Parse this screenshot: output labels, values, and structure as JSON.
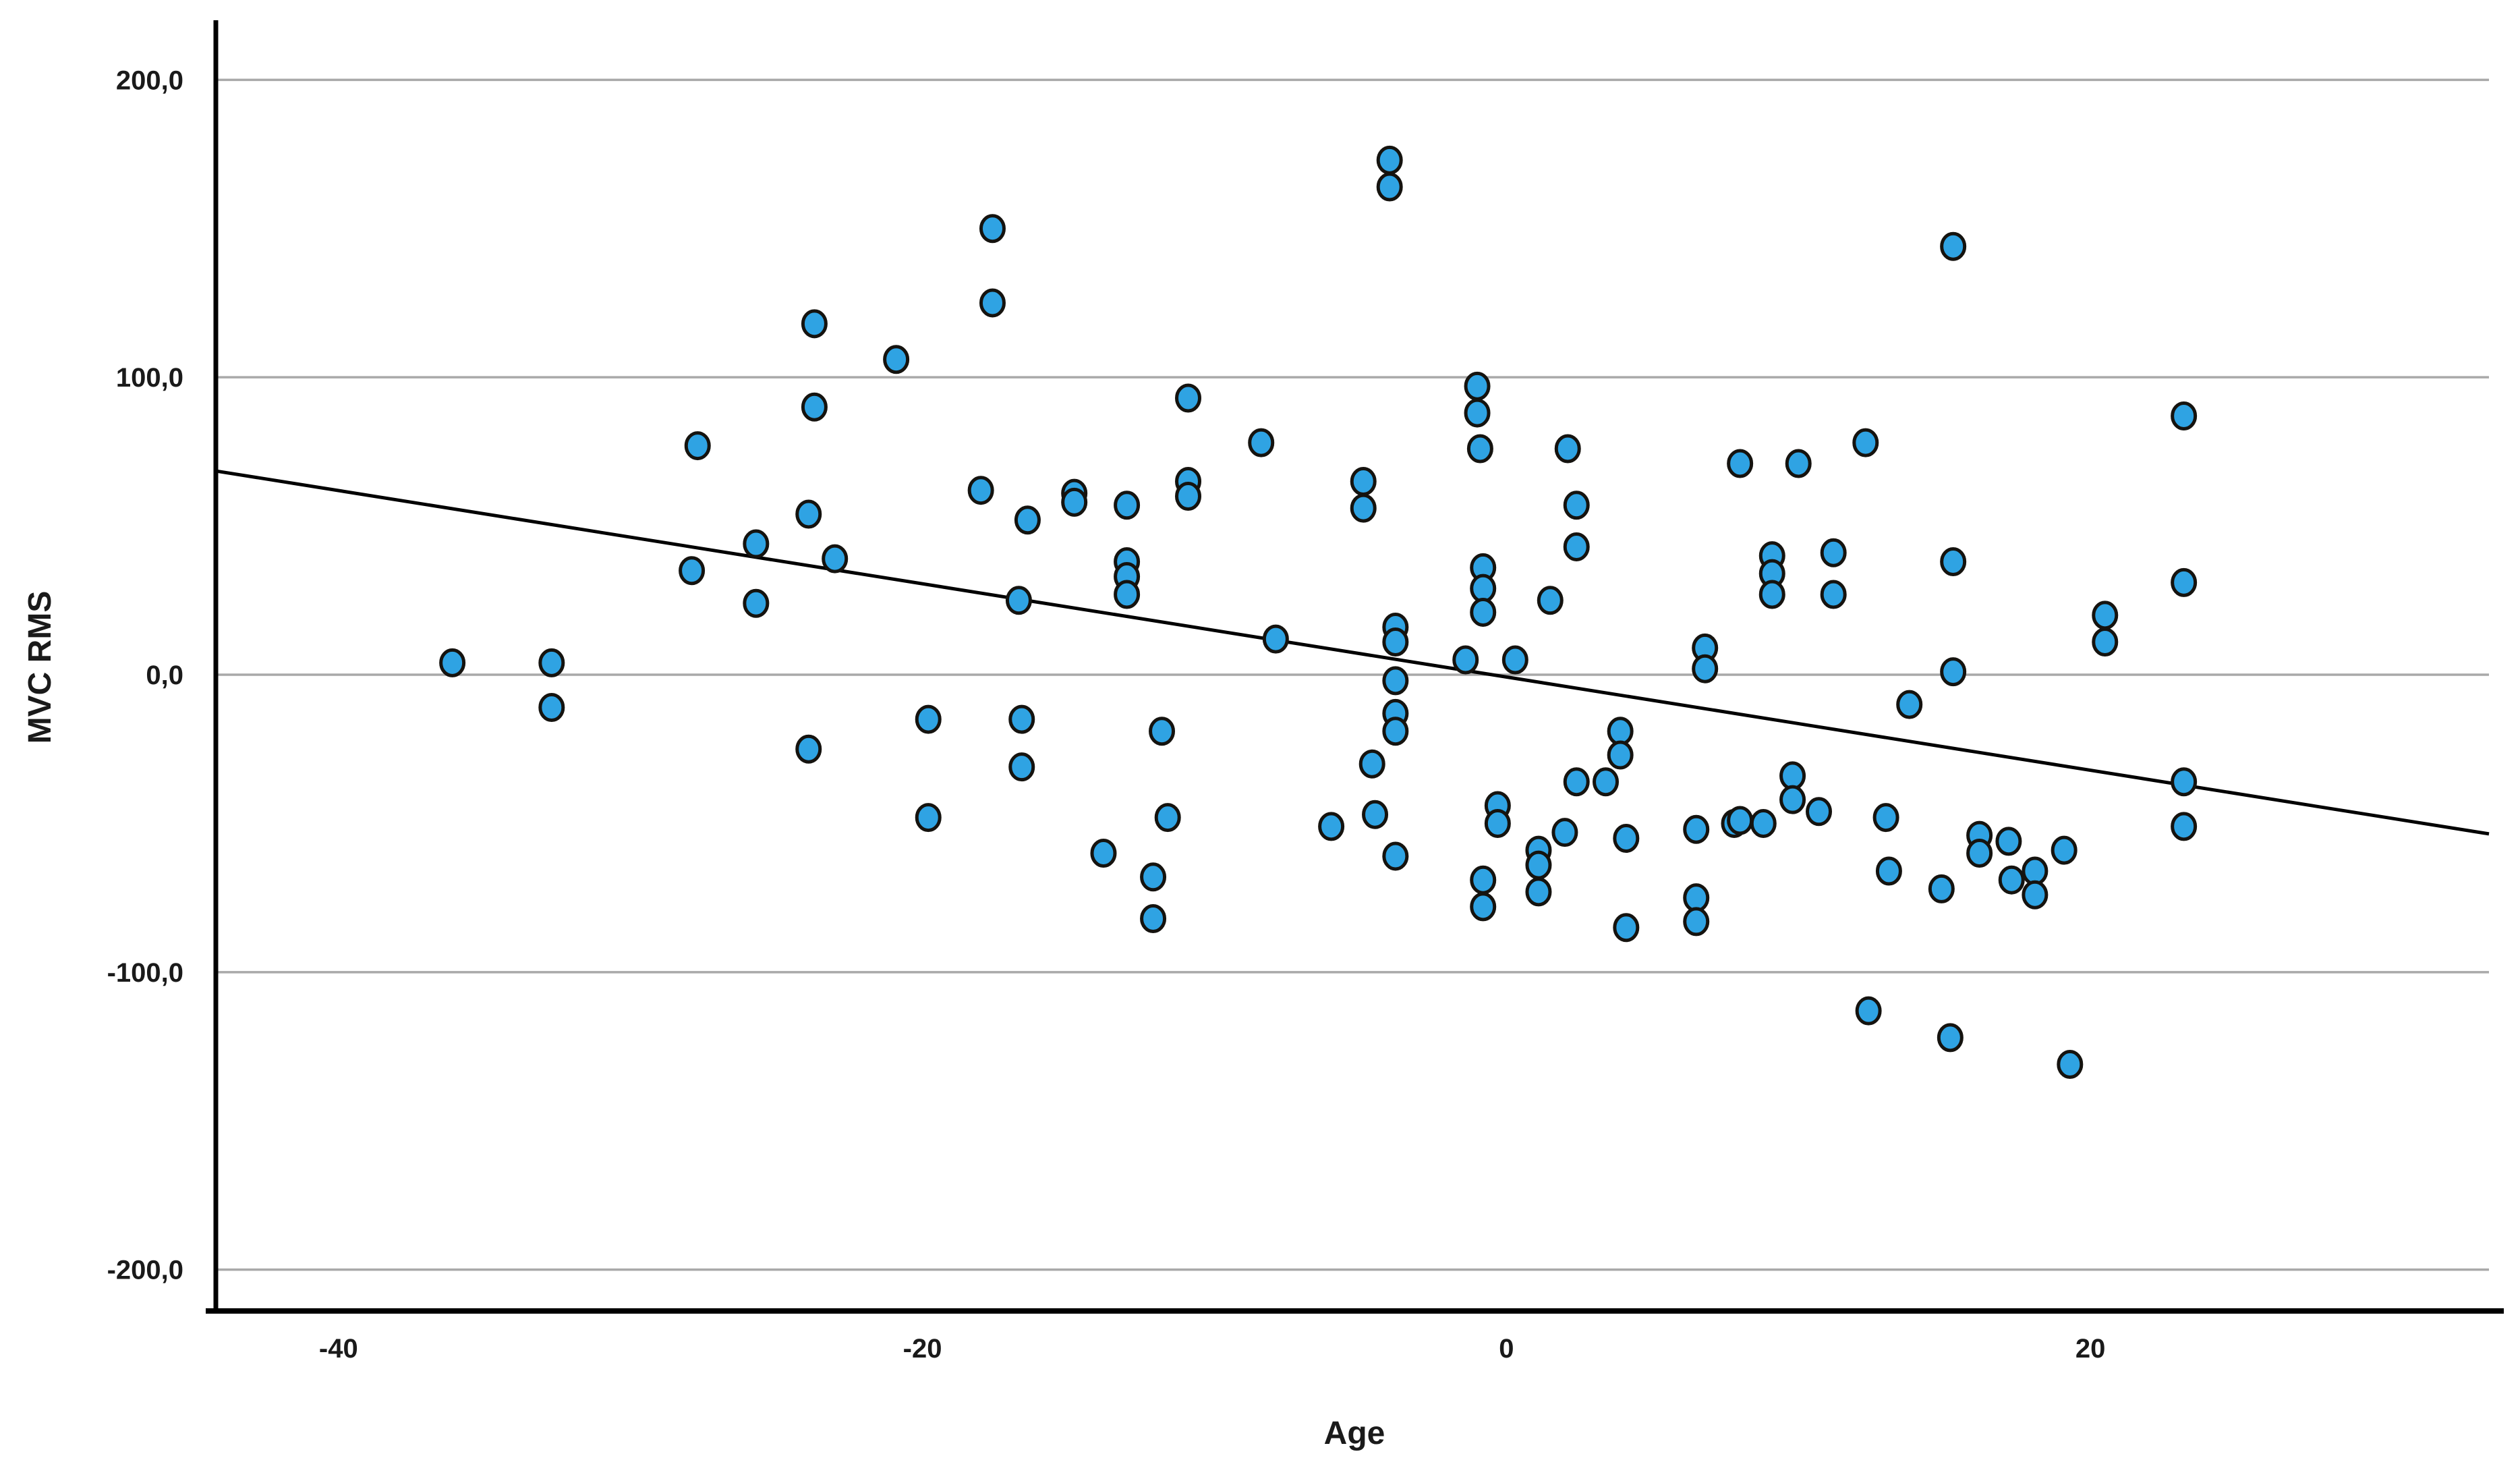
{
  "chart_data": {
    "type": "scatter",
    "title": "",
    "xlabel": "Age",
    "ylabel": "MVC RMS",
    "xlim": [
      -44.2,
      33.65
    ],
    "ylim": [
      -213.9,
      218.9
    ],
    "grid": "horizontal-only",
    "legend_position": "none",
    "x_ticks": [
      {
        "value": -40,
        "label": "-40"
      },
      {
        "value": -20,
        "label": "-20"
      },
      {
        "value": 0,
        "label": "0"
      },
      {
        "value": 20,
        "label": "20"
      }
    ],
    "y_ticks": [
      {
        "value": 200,
        "label": "200,0"
      },
      {
        "value": 100,
        "label": "100,0"
      },
      {
        "value": 0,
        "label": "0,0"
      },
      {
        "value": -100,
        "label": "-100,0"
      },
      {
        "value": -200,
        "label": "-200,0"
      }
    ],
    "marker": {
      "shape": "circle",
      "fill": "#2FA3E3",
      "stroke": "#15130F",
      "rx": 17,
      "ry": 19,
      "stroke_width": 5
    },
    "trendline": {
      "x1": -44.2,
      "y1": 68.5,
      "x2": 33.65,
      "y2": -53.5,
      "color": "#000000",
      "width": 5
    },
    "points": [
      [
        -36.1,
        4
      ],
      [
        -32.7,
        4
      ],
      [
        -32.7,
        -11
      ],
      [
        -27.7,
        77
      ],
      [
        -27.9,
        35
      ],
      [
        -25.7,
        44
      ],
      [
        -25.7,
        24
      ],
      [
        -23.7,
        118
      ],
      [
        -23.9,
        54
      ],
      [
        -23.7,
        90
      ],
      [
        -23.0,
        39
      ],
      [
        -23.9,
        -25
      ],
      [
        -20.9,
        106
      ],
      [
        -19.8,
        -15
      ],
      [
        -19.8,
        -48
      ],
      [
        -17.6,
        150
      ],
      [
        -17.6,
        125
      ],
      [
        -18.0,
        62
      ],
      [
        -16.4,
        52
      ],
      [
        -14.8,
        61
      ],
      [
        -14.8,
        58
      ],
      [
        -13.0,
        57
      ],
      [
        -16.7,
        25
      ],
      [
        -13.0,
        38
      ],
      [
        -13.0,
        33
      ],
      [
        -13.0,
        27
      ],
      [
        -10.9,
        93
      ],
      [
        -10.9,
        65
      ],
      [
        -10.9,
        60
      ],
      [
        -12.1,
        -68
      ],
      [
        -12.1,
        -82
      ],
      [
        -11.6,
        -48
      ],
      [
        -13.8,
        -60
      ],
      [
        -16.6,
        -15
      ],
      [
        -16.6,
        -31
      ],
      [
        -11.8,
        -19
      ],
      [
        -8.4,
        78
      ],
      [
        -7.9,
        12
      ],
      [
        -6.0,
        -51
      ],
      [
        -4.9,
        65
      ],
      [
        -4.9,
        56
      ],
      [
        -3.8,
        16
      ],
      [
        -3.8,
        11
      ],
      [
        -3.8,
        -2
      ],
      [
        -3.8,
        -13
      ],
      [
        -3.8,
        -19
      ],
      [
        -1.4,
        5
      ],
      [
        0.3,
        5
      ],
      [
        -4.6,
        -30
      ],
      [
        -4.5,
        -47
      ],
      [
        -4.0,
        173
      ],
      [
        -4.0,
        164
      ],
      [
        -0.9,
        76
      ],
      [
        2.1,
        76
      ],
      [
        -1.0,
        97
      ],
      [
        -1.0,
        88
      ],
      [
        2.4,
        57
      ],
      [
        2.4,
        43
      ],
      [
        -0.8,
        36
      ],
      [
        -0.8,
        29
      ],
      [
        -0.8,
        21
      ],
      [
        1.5,
        25
      ],
      [
        6.8,
        9
      ],
      [
        6.8,
        2
      ],
      [
        9.1,
        40
      ],
      [
        9.1,
        34
      ],
      [
        9.1,
        27
      ],
      [
        11.2,
        41
      ],
      [
        11.2,
        27
      ],
      [
        8.0,
        71
      ],
      [
        10.0,
        71
      ],
      [
        12.3,
        78
      ],
      [
        15.3,
        144
      ],
      [
        15.3,
        38
      ],
      [
        20.5,
        20
      ],
      [
        20.5,
        11
      ],
      [
        13.8,
        -10
      ],
      [
        15.3,
        1
      ],
      [
        23.2,
        87
      ],
      [
        23.2,
        31
      ],
      [
        23.2,
        -36
      ],
      [
        23.2,
        -51
      ],
      [
        3.9,
        -19
      ],
      [
        3.9,
        -27
      ],
      [
        3.4,
        -36
      ],
      [
        2.4,
        -36
      ],
      [
        -0.3,
        -44
      ],
      [
        -0.3,
        -50
      ],
      [
        2.0,
        -53
      ],
      [
        7.8,
        -50
      ],
      [
        9.8,
        -34
      ],
      [
        9.8,
        -42
      ],
      [
        10.7,
        -46
      ],
      [
        -3.8,
        -61
      ],
      [
        1.1,
        -59
      ],
      [
        1.1,
        -64
      ],
      [
        1.1,
        -73
      ],
      [
        -0.8,
        -69
      ],
      [
        -0.8,
        -78
      ],
      [
        4.1,
        -55
      ],
      [
        4.1,
        -85
      ],
      [
        6.5,
        -52
      ],
      [
        6.5,
        -75
      ],
      [
        6.5,
        -83
      ],
      [
        8.0,
        -49
      ],
      [
        8.8,
        -50
      ],
      [
        13.0,
        -48
      ],
      [
        13.1,
        -66
      ],
      [
        14.9,
        -72
      ],
      [
        16.2,
        -54
      ],
      [
        16.2,
        -60
      ],
      [
        17.2,
        -56
      ],
      [
        17.3,
        -69
      ],
      [
        18.1,
        -66
      ],
      [
        18.1,
        -74
      ],
      [
        19.1,
        -59
      ],
      [
        12.4,
        -113
      ],
      [
        15.2,
        -122
      ],
      [
        19.3,
        -131
      ]
    ]
  },
  "colors": {
    "background": "#FFFFFF",
    "gridline": "#A9A9A9",
    "axis": "#000000",
    "tick_text": "#1A1A1A"
  }
}
